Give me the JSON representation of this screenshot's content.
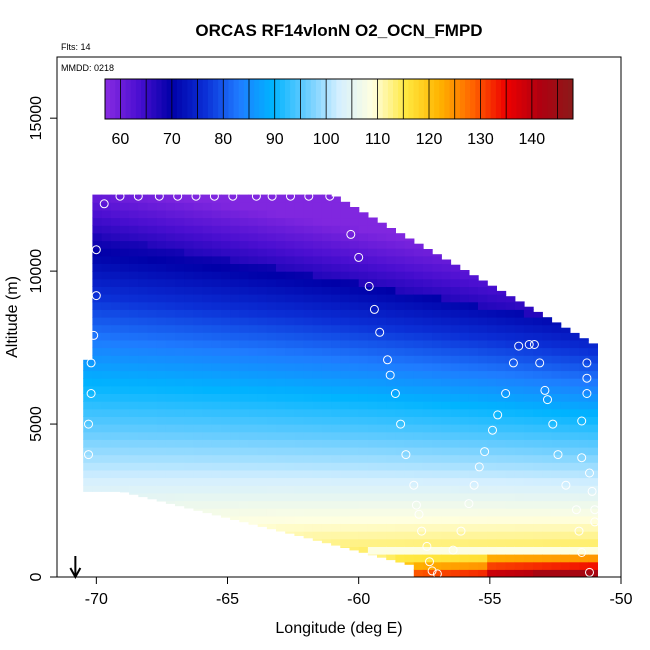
{
  "chart_data": {
    "type": "heatmap",
    "title": "ORCAS RF14vlonN O2_OCN_FMPD",
    "flights_note": "Flts: 14",
    "date_note": "MMDD: 0218",
    "xlabel": "Longitude (deg E)",
    "ylabel": "Altitude (m)",
    "xlim": [
      -71.5,
      -50
    ],
    "ylim": [
      0,
      17000
    ],
    "x_ticks": [
      -70,
      -65,
      -60,
      -55,
      -50
    ],
    "x_tick_labels": [
      "-70",
      "-65",
      "-60",
      "-55",
      "-50"
    ],
    "y_ticks": [
      0,
      5000,
      10000,
      15000
    ],
    "y_tick_labels": [
      "0",
      "5000",
      "10000",
      "15000"
    ],
    "colorbar": {
      "range": [
        57,
        148
      ],
      "ticks": [
        60,
        70,
        80,
        90,
        100,
        110,
        120,
        130,
        140
      ],
      "tick_labels": [
        "60",
        "70",
        "80",
        "90",
        "100",
        "110",
        "120",
        "130",
        "140"
      ],
      "colormap": [
        "#8a2be2",
        "#4b0fd1",
        "#0000a8",
        "#0b2fd6",
        "#1f7bff",
        "#00b4ff",
        "#66ccff",
        "#d4efff",
        "#ffffe0",
        "#ffe840",
        "#ffb400",
        "#ff6400",
        "#ee0000",
        "#b00010",
        "#8b1a1a"
      ]
    },
    "arrow_longitude": -70.8,
    "profile_points": [
      {
        "lon": -69.7,
        "alt": 12200
      },
      {
        "lon": -69.1,
        "alt": 12450
      },
      {
        "lon": -68.4,
        "alt": 12450
      },
      {
        "lon": -67.6,
        "alt": 12450
      },
      {
        "lon": -66.9,
        "alt": 12450
      },
      {
        "lon": -66.2,
        "alt": 12450
      },
      {
        "lon": -65.5,
        "alt": 12450
      },
      {
        "lon": -64.8,
        "alt": 12450
      },
      {
        "lon": -63.9,
        "alt": 12450
      },
      {
        "lon": -63.3,
        "alt": 12450
      },
      {
        "lon": -62.6,
        "alt": 12450
      },
      {
        "lon": -61.9,
        "alt": 12450
      },
      {
        "lon": -61.1,
        "alt": 12450
      },
      {
        "lon": -60.3,
        "alt": 11200
      },
      {
        "lon": -60.0,
        "alt": 10450
      },
      {
        "lon": -59.6,
        "alt": 9500
      },
      {
        "lon": -59.4,
        "alt": 8750
      },
      {
        "lon": -59.2,
        "alt": 8000
      },
      {
        "lon": -58.9,
        "alt": 7100
      },
      {
        "lon": -58.8,
        "alt": 6600
      },
      {
        "lon": -58.6,
        "alt": 6000
      },
      {
        "lon": -58.4,
        "alt": 5000
      },
      {
        "lon": -58.2,
        "alt": 4000
      },
      {
        "lon": -57.9,
        "alt": 3000
      },
      {
        "lon": -57.8,
        "alt": 2350
      },
      {
        "lon": -57.7,
        "alt": 2050
      },
      {
        "lon": -57.6,
        "alt": 1500
      },
      {
        "lon": -57.4,
        "alt": 1000
      },
      {
        "lon": -57.3,
        "alt": 500
      },
      {
        "lon": -57.2,
        "alt": 200
      },
      {
        "lon": -57.0,
        "alt": 100
      },
      {
        "lon": -56.4,
        "alt": 880
      },
      {
        "lon": -56.1,
        "alt": 1500
      },
      {
        "lon": -55.8,
        "alt": 2400
      },
      {
        "lon": -55.6,
        "alt": 3000
      },
      {
        "lon": -55.4,
        "alt": 3600
      },
      {
        "lon": -55.2,
        "alt": 4100
      },
      {
        "lon": -54.9,
        "alt": 4800
      },
      {
        "lon": -54.7,
        "alt": 5300
      },
      {
        "lon": -54.4,
        "alt": 6000
      },
      {
        "lon": -54.1,
        "alt": 7000
      },
      {
        "lon": -53.9,
        "alt": 7550
      },
      {
        "lon": -53.5,
        "alt": 7600
      },
      {
        "lon": -53.3,
        "alt": 7600
      },
      {
        "lon": -53.1,
        "alt": 7000
      },
      {
        "lon": -52.9,
        "alt": 6100
      },
      {
        "lon": -52.8,
        "alt": 5800
      },
      {
        "lon": -52.6,
        "alt": 5000
      },
      {
        "lon": -52.4,
        "alt": 4000
      },
      {
        "lon": -52.1,
        "alt": 3000
      },
      {
        "lon": -51.7,
        "alt": 2200
      },
      {
        "lon": -51.6,
        "alt": 1500
      },
      {
        "lon": -51.5,
        "alt": 800
      },
      {
        "lon": -51.2,
        "alt": 150
      },
      {
        "lon": -51.3,
        "alt": 7000
      },
      {
        "lon": -51.3,
        "alt": 6500
      },
      {
        "lon": -51.3,
        "alt": 6000
      },
      {
        "lon": -51.5,
        "alt": 5100
      },
      {
        "lon": -51.5,
        "alt": 3900
      },
      {
        "lon": -51.2,
        "alt": 3400
      },
      {
        "lon": -51.0,
        "alt": 2200
      },
      {
        "lon": -51.0,
        "alt": 1800
      },
      {
        "lon": -51.1,
        "alt": 2800
      },
      {
        "lon": -70.0,
        "alt": 10700
      },
      {
        "lon": -70.0,
        "alt": 9200
      },
      {
        "lon": -70.1,
        "alt": 7900
      },
      {
        "lon": -70.2,
        "alt": 7000
      },
      {
        "lon": -70.2,
        "alt": 6000
      },
      {
        "lon": -70.3,
        "alt": 5000
      },
      {
        "lon": -70.3,
        "alt": 4000
      }
    ]
  }
}
